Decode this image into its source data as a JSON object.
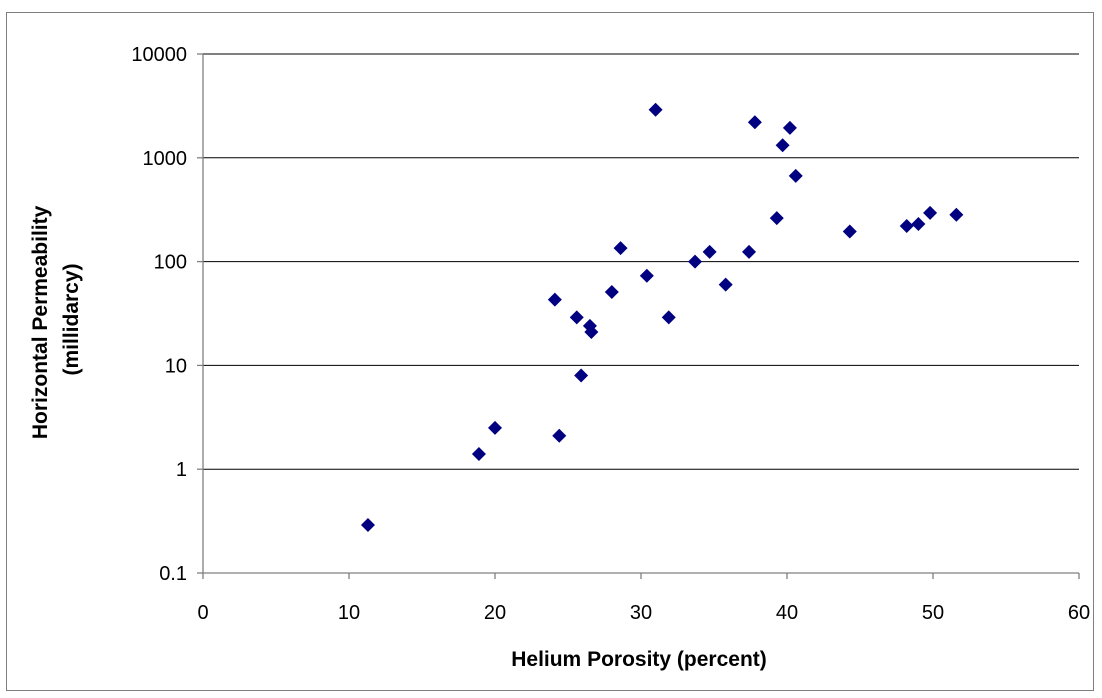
{
  "chart_data": {
    "type": "scatter",
    "xlabel": "Helium Porosity (percent)",
    "ylabel_lines": [
      "Horizontal Permeability",
      "(millidarcy)"
    ],
    "x_ticks": [
      "0",
      "10",
      "20",
      "30",
      "40",
      "50",
      "60"
    ],
    "y_ticks": [
      "0.1",
      "1",
      "10",
      "100",
      "1000",
      "10000"
    ],
    "xlim": [
      0,
      60
    ],
    "ylim": [
      0.1,
      10000
    ],
    "y_scale": "log",
    "grid": "horizontal major gridlines",
    "legend": "none",
    "marker": "diamond",
    "marker_color": "#000080",
    "points": [
      {
        "x": 11.3,
        "y": 0.29
      },
      {
        "x": 18.9,
        "y": 1.4
      },
      {
        "x": 20.0,
        "y": 2.5
      },
      {
        "x": 24.1,
        "y": 43
      },
      {
        "x": 24.4,
        "y": 2.1
      },
      {
        "x": 25.6,
        "y": 29
      },
      {
        "x": 25.9,
        "y": 8.0
      },
      {
        "x": 26.5,
        "y": 24
      },
      {
        "x": 26.6,
        "y": 21
      },
      {
        "x": 28.0,
        "y": 51
      },
      {
        "x": 28.6,
        "y": 135
      },
      {
        "x": 30.4,
        "y": 73
      },
      {
        "x": 31.0,
        "y": 2900
      },
      {
        "x": 31.9,
        "y": 29
      },
      {
        "x": 33.7,
        "y": 100
      },
      {
        "x": 34.7,
        "y": 124
      },
      {
        "x": 35.8,
        "y": 60
      },
      {
        "x": 37.4,
        "y": 124
      },
      {
        "x": 37.8,
        "y": 2200
      },
      {
        "x": 39.3,
        "y": 262
      },
      {
        "x": 39.7,
        "y": 1320
      },
      {
        "x": 40.2,
        "y": 1940
      },
      {
        "x": 40.6,
        "y": 670
      },
      {
        "x": 44.3,
        "y": 195
      },
      {
        "x": 48.2,
        "y": 220
      },
      {
        "x": 49.0,
        "y": 230
      },
      {
        "x": 49.8,
        "y": 295
      },
      {
        "x": 51.6,
        "y": 283
      }
    ]
  }
}
